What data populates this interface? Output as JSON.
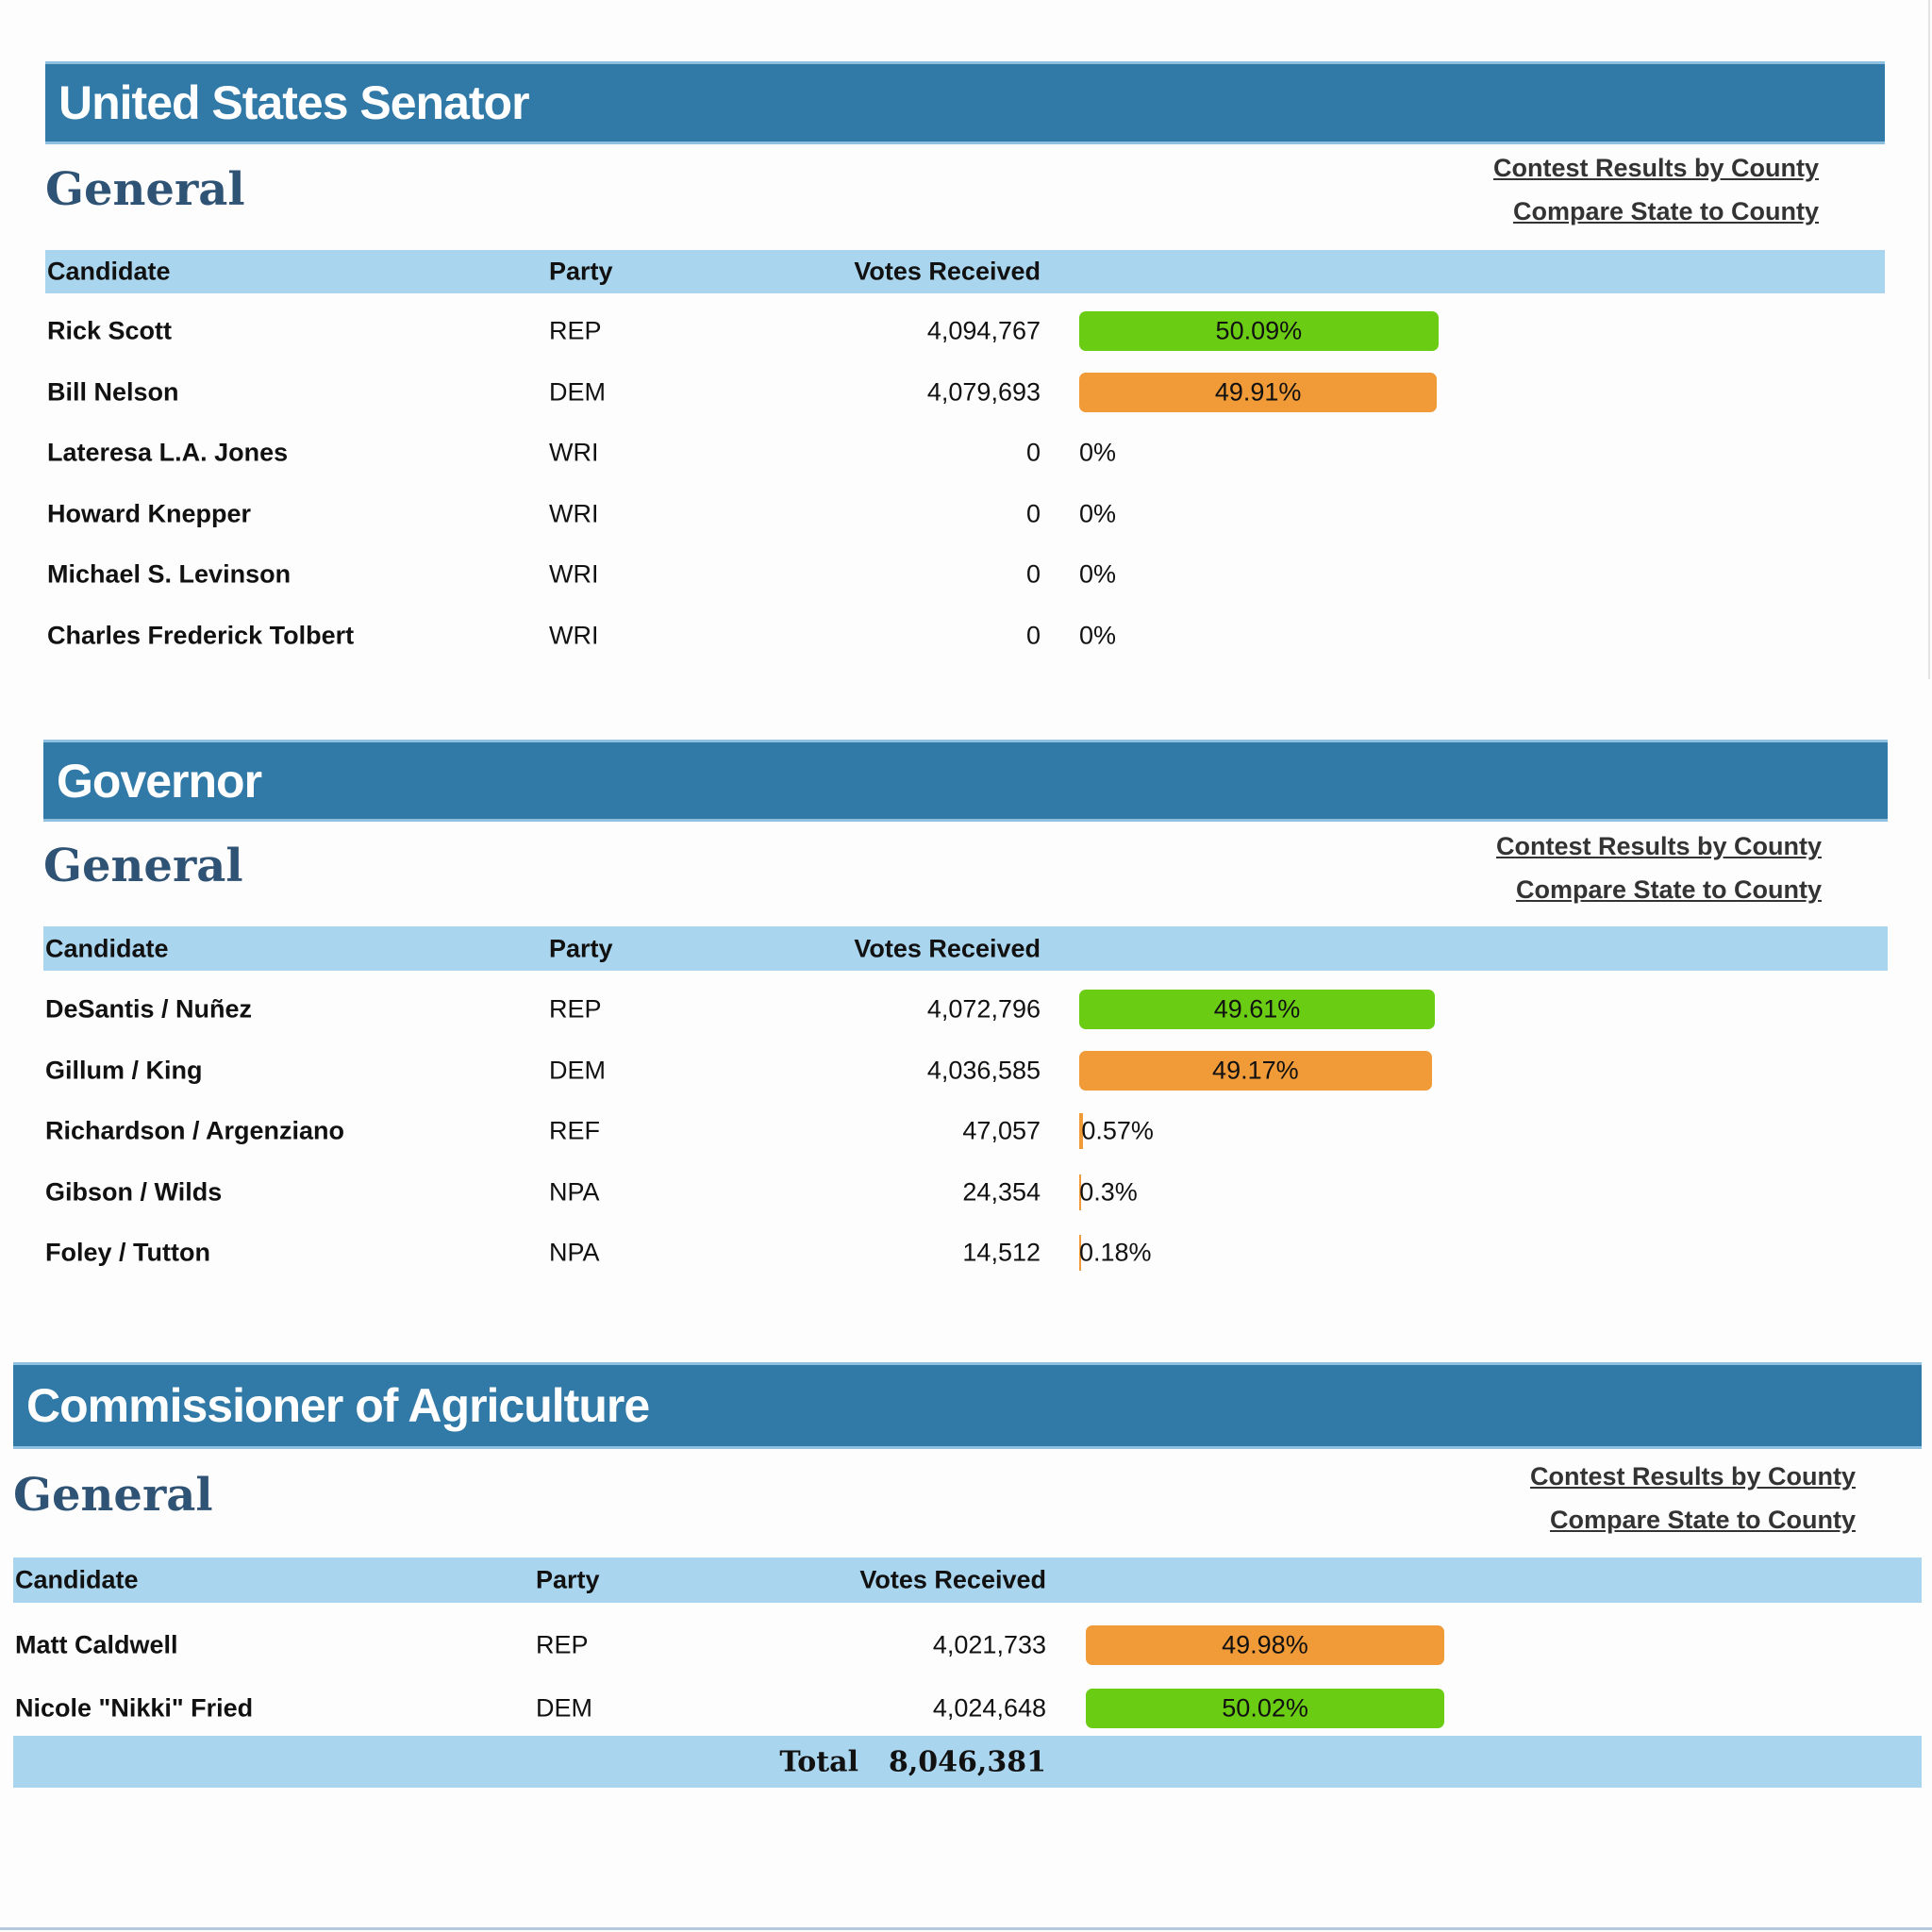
{
  "colors": {
    "banner": "#3179a7",
    "header_row": "#a9d5ee",
    "winner": "#6acd14",
    "runner_up": "#f09a38",
    "minor_bar": "#f09a38"
  },
  "columns": {
    "candidate": "Candidate",
    "party": "Party",
    "votes": "Votes Received"
  },
  "links": {
    "by_county": "Contest Results by County",
    "compare": "Compare State to County"
  },
  "contests": [
    {
      "title": "United States Senator",
      "subtitle": "General",
      "candidates": [
        {
          "name": "Rick Scott",
          "party": "REP",
          "votes": "4,094,767",
          "pct": "50.09%",
          "pct_value": 50.09,
          "color": "#6acd14"
        },
        {
          "name": "Bill Nelson",
          "party": "DEM",
          "votes": "4,079,693",
          "pct": "49.91%",
          "pct_value": 49.91,
          "color": "#f09a38"
        },
        {
          "name": "Lateresa L.A. Jones",
          "party": "WRI",
          "votes": "0",
          "pct": "0%",
          "pct_value": 0,
          "color": "#f09a38"
        },
        {
          "name": "Howard Knepper",
          "party": "WRI",
          "votes": "0",
          "pct": "0%",
          "pct_value": 0,
          "color": "#f09a38"
        },
        {
          "name": "Michael S. Levinson",
          "party": "WRI",
          "votes": "0",
          "pct": "0%",
          "pct_value": 0,
          "color": "#f09a38"
        },
        {
          "name": "Charles Frederick Tolbert",
          "party": "WRI",
          "votes": "0",
          "pct": "0%",
          "pct_value": 0,
          "color": "#f09a38"
        }
      ]
    },
    {
      "title": "Governor",
      "subtitle": "General",
      "candidates": [
        {
          "name": "DeSantis / Nuñez",
          "party": "REP",
          "votes": "4,072,796",
          "pct": "49.61%",
          "pct_value": 49.61,
          "color": "#6acd14"
        },
        {
          "name": "Gillum / King",
          "party": "DEM",
          "votes": "4,036,585",
          "pct": "49.17%",
          "pct_value": 49.17,
          "color": "#f09a38"
        },
        {
          "name": "Richardson / Argenziano",
          "party": "REF",
          "votes": "47,057",
          "pct": "0.57%",
          "pct_value": 0.57,
          "color": "#f09a38"
        },
        {
          "name": "Gibson / Wilds",
          "party": "NPA",
          "votes": "24,354",
          "pct": "0.3%",
          "pct_value": 0.3,
          "color": "#f09a38"
        },
        {
          "name": "Foley / Tutton",
          "party": "NPA",
          "votes": "14,512",
          "pct": "0.18%",
          "pct_value": 0.18,
          "color": "#f09a38"
        }
      ]
    },
    {
      "title": "Commissioner of Agriculture",
      "subtitle": "General",
      "candidates": [
        {
          "name": "Matt Caldwell",
          "party": "REP",
          "votes": "4,021,733",
          "pct": "49.98%",
          "pct_value": 49.98,
          "color": "#f09a38"
        },
        {
          "name": "Nicole \"Nikki\" Fried",
          "party": "DEM",
          "votes": "4,024,648",
          "pct": "50.02%",
          "pct_value": 50.02,
          "color": "#6acd14"
        }
      ],
      "total_label": "Total",
      "total_value": "8,046,381"
    }
  ]
}
